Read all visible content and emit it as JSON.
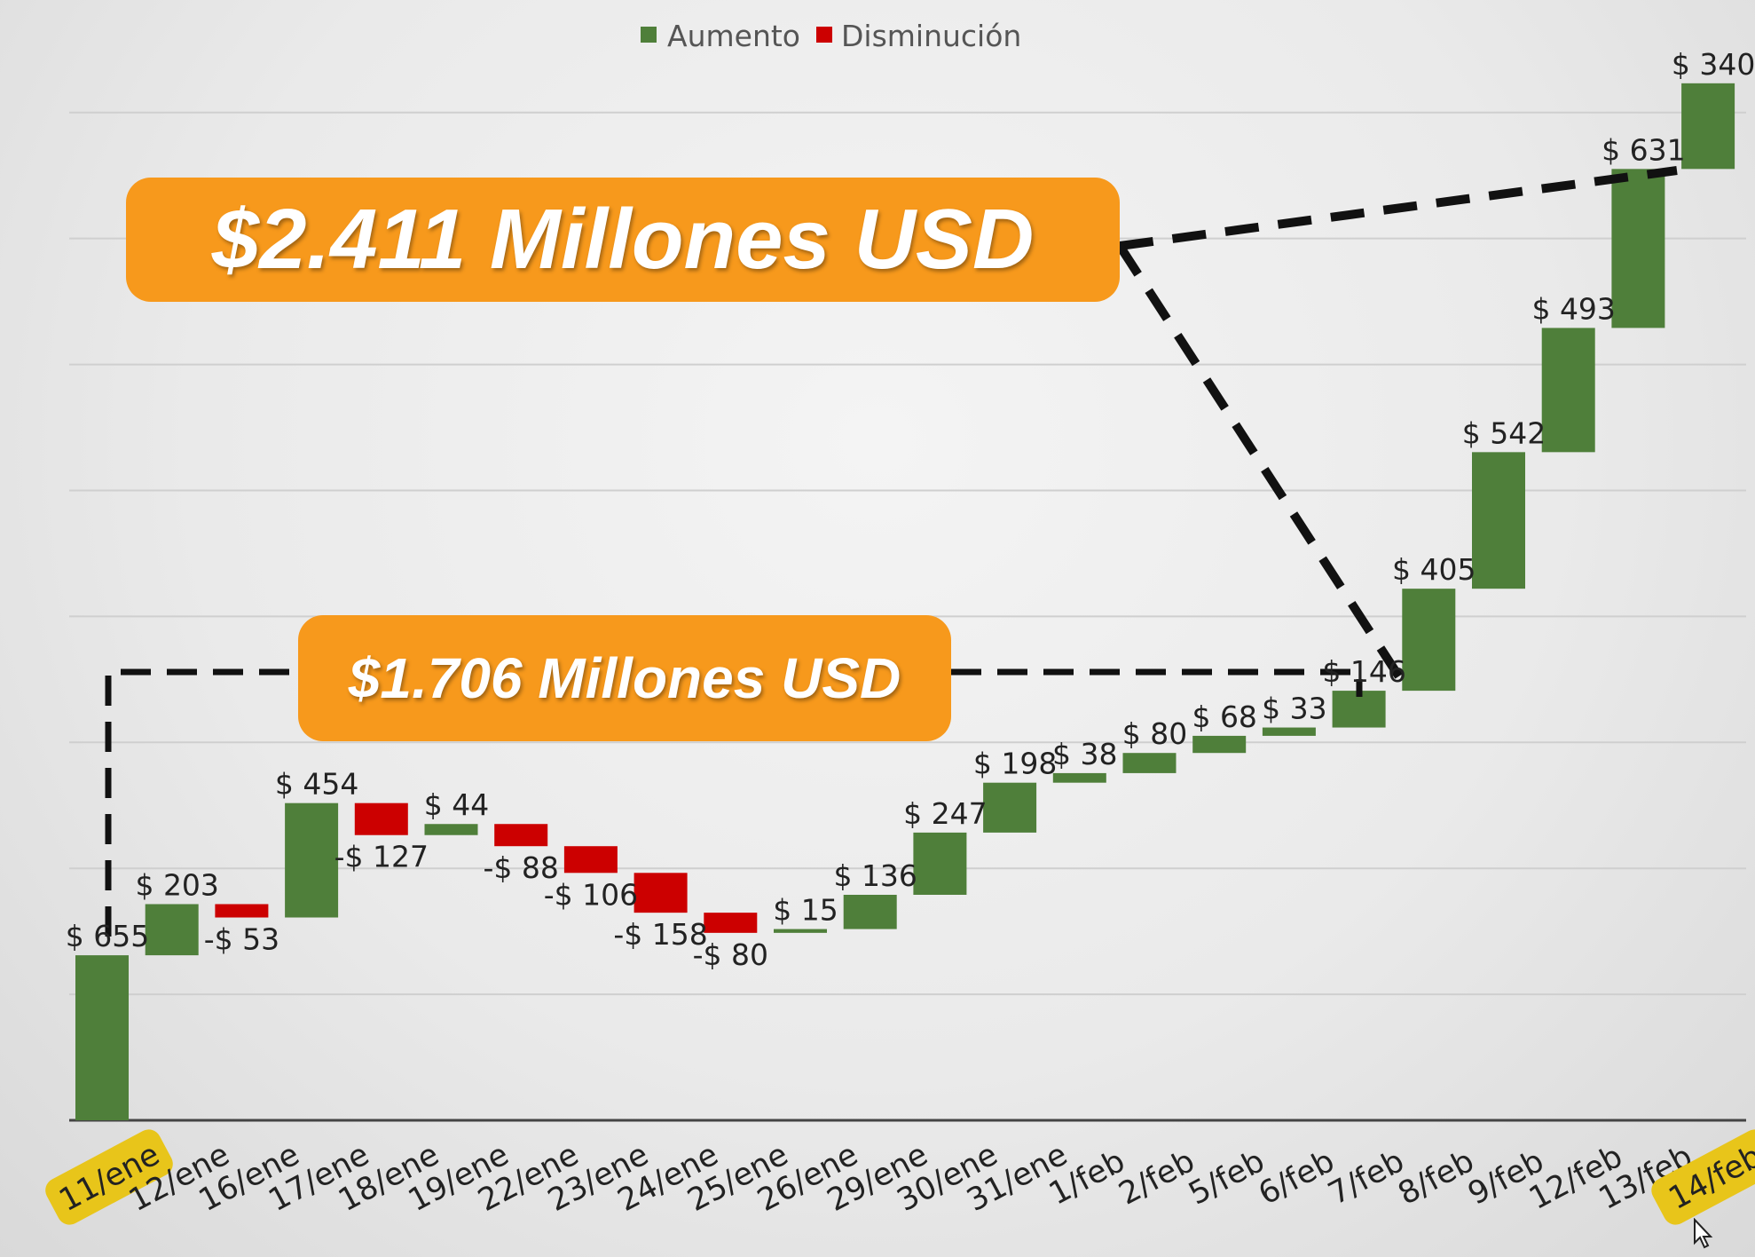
{
  "legend": {
    "increase_label": "Aumento",
    "decrease_label": "Disminución",
    "increase_color": "#4f7f3a",
    "decrease_color": "#cc0000"
  },
  "callouts": {
    "total": "$2.411 Millones USD",
    "mid": "$1.706 Millones USD",
    "color": "#f7991c"
  },
  "chart_data": {
    "type": "waterfall",
    "categories": [
      "11/ene",
      "12/ene",
      "16/ene",
      "17/ene",
      "18/ene",
      "19/ene",
      "22/ene",
      "23/ene",
      "24/ene",
      "25/ene",
      "26/ene",
      "29/ene",
      "30/ene",
      "31/ene",
      "1/feb",
      "2/feb",
      "5/feb",
      "6/feb",
      "7/feb",
      "8/feb",
      "9/feb",
      "12/feb",
      "13/feb",
      "14/feb"
    ],
    "values": [
      655,
      203,
      -53,
      454,
      -127,
      44,
      -88,
      -106,
      -158,
      -80,
      15,
      136,
      247,
      198,
      38,
      80,
      68,
      33,
      146,
      405,
      542,
      493,
      631,
      340
    ],
    "value_labels": [
      "$ 655",
      "$ 203",
      "-$ 53",
      "$ 454",
      "-$ 127",
      "$ 44",
      "-$ 88",
      "-$ 106",
      "-$ 158",
      "-$ 80",
      "$ 15",
      "$ 136",
      "$ 247",
      "$ 198",
      "$ 38",
      "$ 80",
      "$ 68",
      "$ 33",
      "$ 146",
      "$ 405",
      "$ 542",
      "$ 493",
      "$ 631",
      "$ 340"
    ],
    "highlighted_categories": [
      "11/ene",
      "14/feb"
    ],
    "highlight_color": "#e8c51a",
    "ylim": [
      0,
      4200
    ],
    "grid": true,
    "legend_position": "top-center"
  }
}
